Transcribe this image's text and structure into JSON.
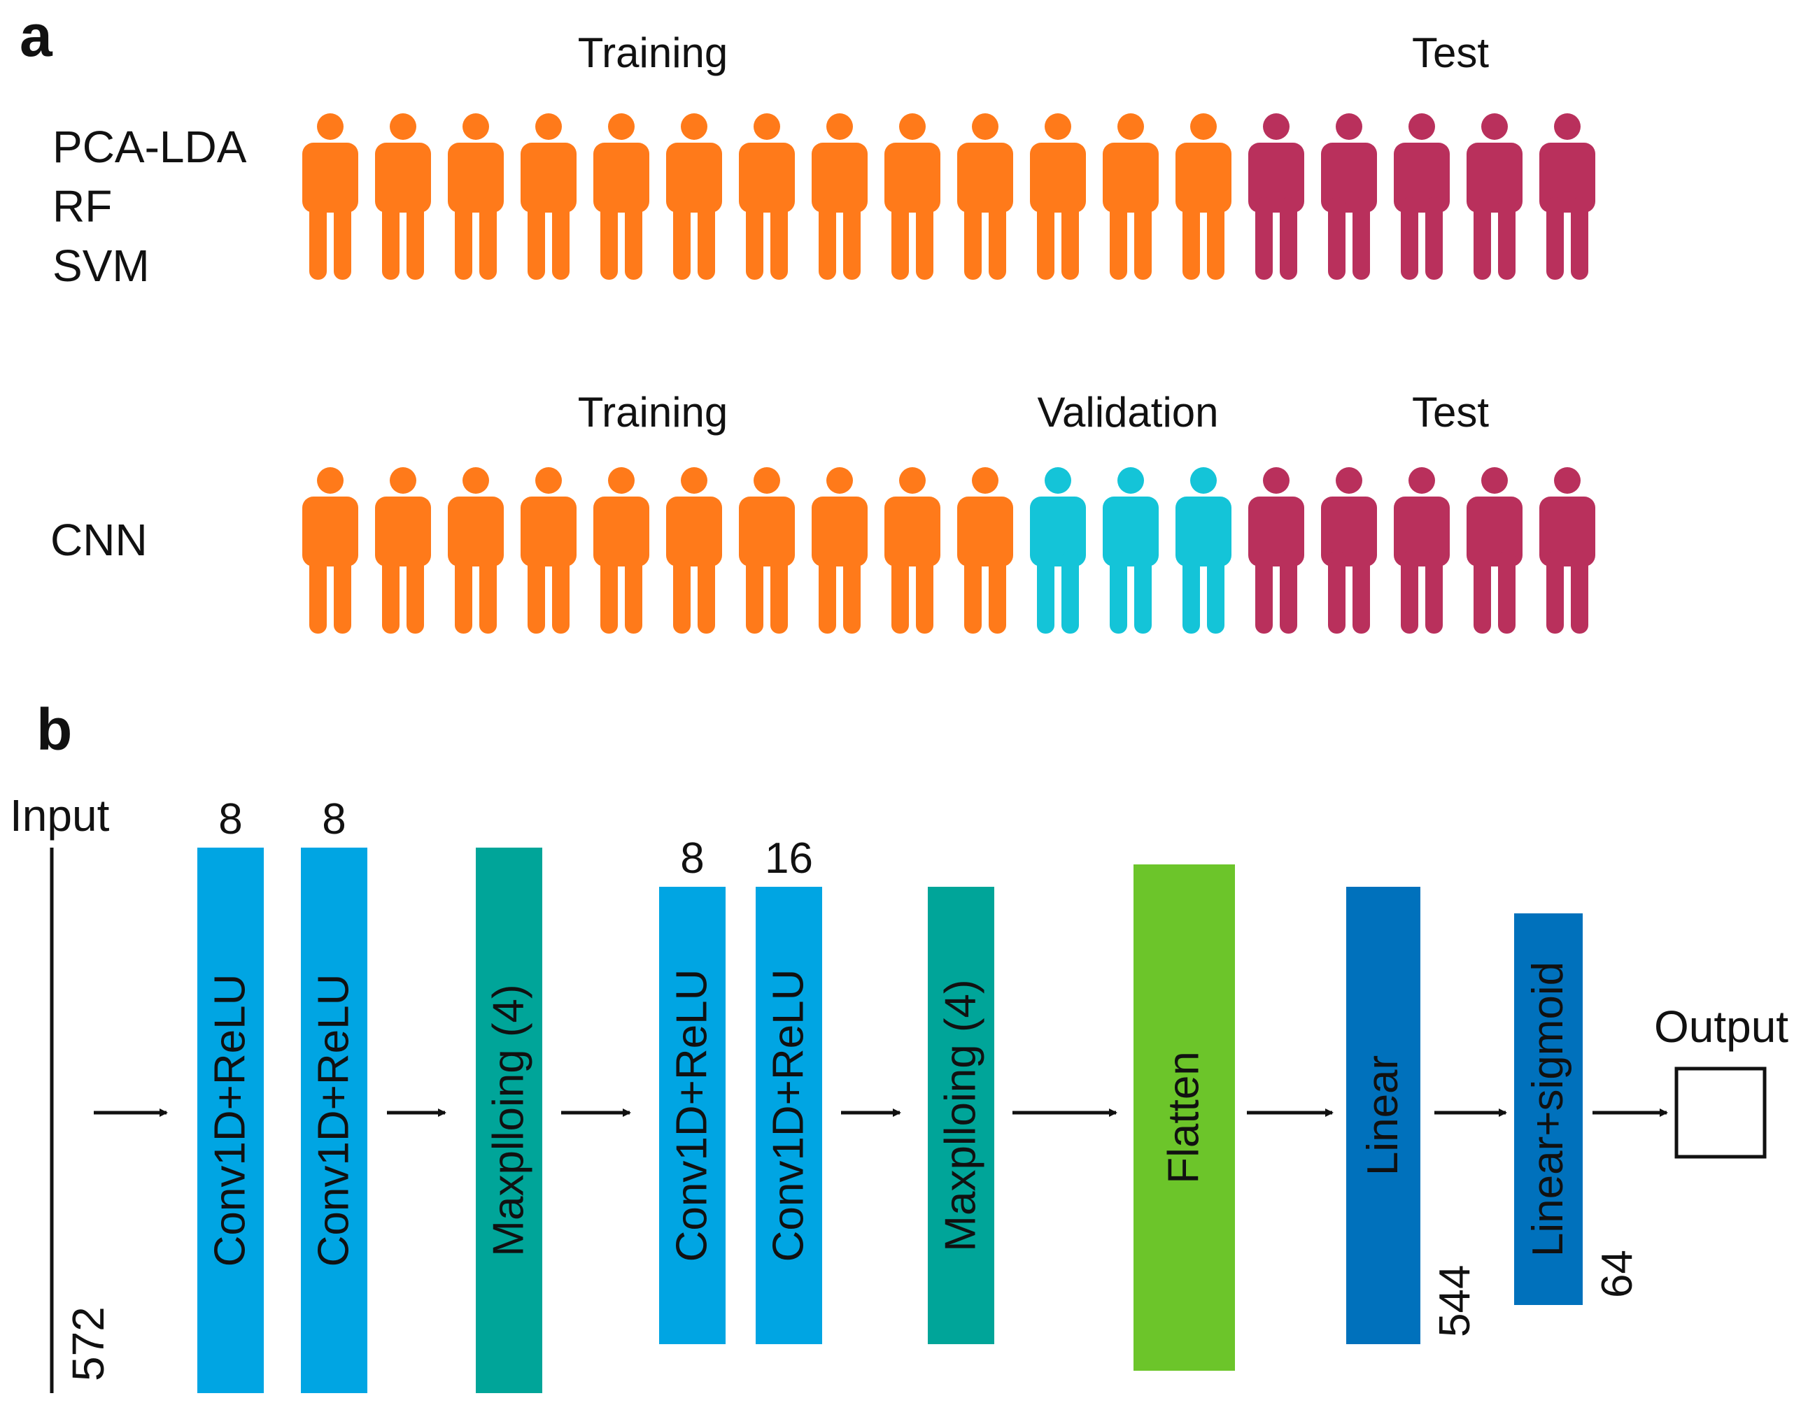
{
  "panel_a": {
    "label": "a",
    "colors": {
      "training": "#ff7a1a",
      "validation": "#14c4d8",
      "test": "#b9305c"
    },
    "row1": {
      "methods": [
        "PCA-LDA",
        "RF",
        "SVM"
      ],
      "headers": {
        "training": "Training",
        "test": "Test"
      },
      "counts": {
        "training": 13,
        "validation": 0,
        "test": 5
      }
    },
    "row2": {
      "methods": [
        "CNN"
      ],
      "headers": {
        "training": "Training",
        "validation": "Validation",
        "test": "Test"
      },
      "counts": {
        "training": 10,
        "validation": 3,
        "test": 5
      }
    }
  },
  "panel_b": {
    "label": "b",
    "input": {
      "label": "Input",
      "size": "572"
    },
    "blocks": [
      {
        "label": "Conv1D+ReLU",
        "top_label": "8",
        "side_label": "",
        "color": "#00a5e3"
      },
      {
        "label": "Conv1D+ReLU",
        "top_label": "8",
        "side_label": "",
        "color": "#00a5e3"
      },
      {
        "label": "Maxplloing (4)",
        "top_label": "",
        "side_label": "",
        "color": "#00a599"
      },
      {
        "label": "Conv1D+ReLU",
        "top_label": "8",
        "side_label": "",
        "color": "#00a5e3"
      },
      {
        "label": "Conv1D+ReLU",
        "top_label": "16",
        "side_label": "",
        "color": "#00a5e3"
      },
      {
        "label": "Maxplloing (4)",
        "top_label": "",
        "side_label": "",
        "color": "#00a599"
      },
      {
        "label": "Flatten",
        "top_label": "",
        "side_label": "",
        "color": "#6cc52a"
      },
      {
        "label": "Linear",
        "top_label": "",
        "side_label": "544",
        "color": "#0071bc"
      },
      {
        "label": "Linear+sigmoid",
        "top_label": "",
        "side_label": "64",
        "color": "#0071bc"
      }
    ],
    "output": {
      "label": "Output"
    }
  }
}
